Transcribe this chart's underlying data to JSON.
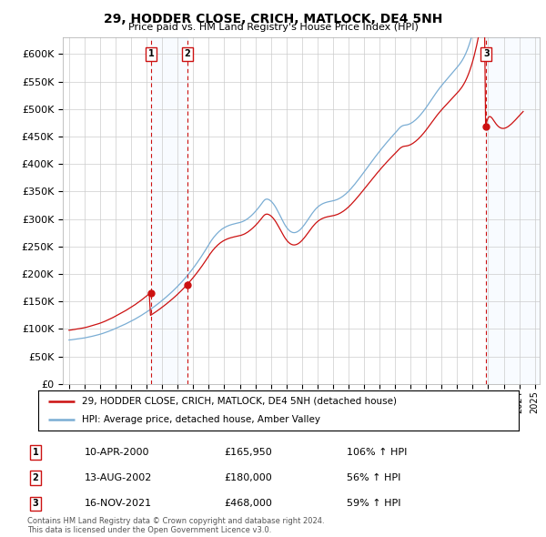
{
  "title": "29, HODDER CLOSE, CRICH, MATLOCK, DE4 5NH",
  "subtitle": "Price paid vs. HM Land Registry's House Price Index (HPI)",
  "footer": "Contains HM Land Registry data © Crown copyright and database right 2024.\nThis data is licensed under the Open Government Licence v3.0.",
  "legend_line1": "29, HODDER CLOSE, CRICH, MATLOCK, DE4 5NH (detached house)",
  "legend_line2": "HPI: Average price, detached house, Amber Valley",
  "sales": [
    {
      "num": 1,
      "date_str": "10-APR-2000",
      "year": 2000.28,
      "price": 165950,
      "pct": "106%",
      "dir": "↑"
    },
    {
      "num": 2,
      "date_str": "13-AUG-2002",
      "year": 2002.62,
      "price": 180000,
      "pct": "56%",
      "dir": "↑"
    },
    {
      "num": 3,
      "date_str": "16-NOV-2021",
      "year": 2021.87,
      "price": 468000,
      "pct": "59%",
      "dir": "↑"
    }
  ],
  "hpi_color": "#7aadd4",
  "price_color": "#cc1111",
  "highlight_color": "#ddeeff",
  "ylim": [
    0,
    620000
  ],
  "yticks": [
    0,
    50000,
    100000,
    150000,
    200000,
    250000,
    300000,
    350000,
    400000,
    450000,
    500000,
    550000,
    600000
  ],
  "ytick_labels": [
    "£0",
    "£50K",
    "£100K",
    "£150K",
    "£200K",
    "£250K",
    "£300K",
    "£350K",
    "£400K",
    "£450K",
    "£500K",
    "£550K",
    "£600K"
  ],
  "hpi_index": [
    100.0,
    100.2,
    100.5,
    101.0,
    101.3,
    101.8,
    102.2,
    102.5,
    102.9,
    103.3,
    103.8,
    104.2,
    104.7,
    105.3,
    105.8,
    106.5,
    107.1,
    107.8,
    108.5,
    109.2,
    109.9,
    110.7,
    111.5,
    112.2,
    113.0,
    113.9,
    114.8,
    115.8,
    116.8,
    117.9,
    119.0,
    120.1,
    121.3,
    122.4,
    123.6,
    124.9,
    126.1,
    127.3,
    128.6,
    129.9,
    131.2,
    132.6,
    134.0,
    135.4,
    136.8,
    138.3,
    139.7,
    141.2,
    142.7,
    144.2,
    145.8,
    147.4,
    149.1,
    150.8,
    152.5,
    154.3,
    156.1,
    158.0,
    159.8,
    161.7,
    163.7,
    165.6,
    167.6,
    169.7,
    171.8,
    173.9,
    176.1,
    178.3,
    180.5,
    182.8,
    185.1,
    187.5,
    189.9,
    192.3,
    194.8,
    197.3,
    199.9,
    202.5,
    205.2,
    207.9,
    210.6,
    213.4,
    216.3,
    219.2,
    222.2,
    225.2,
    228.3,
    231.5,
    234.7,
    238.0,
    241.4,
    244.9,
    248.4,
    252.0,
    255.7,
    259.5,
    263.4,
    267.3,
    271.3,
    275.5,
    279.7,
    284.0,
    288.4,
    292.9,
    297.5,
    302.2,
    307.0,
    311.9,
    316.9,
    321.6,
    326.0,
    330.1,
    333.9,
    337.5,
    340.8,
    343.9,
    346.7,
    349.3,
    351.6,
    353.6,
    355.4,
    357.0,
    358.4,
    359.7,
    360.8,
    361.8,
    362.7,
    363.5,
    364.3,
    365.0,
    365.7,
    366.3,
    367.0,
    367.9,
    369.0,
    370.3,
    371.8,
    373.6,
    375.6,
    377.8,
    380.3,
    382.9,
    385.8,
    388.8,
    392.0,
    395.4,
    398.9,
    402.6,
    406.4,
    410.4,
    414.5,
    417.9,
    419.8,
    420.4,
    419.7,
    418.2,
    416.0,
    413.0,
    409.4,
    405.2,
    400.4,
    395.1,
    389.4,
    383.5,
    377.5,
    371.7,
    366.2,
    361.1,
    356.6,
    352.8,
    349.6,
    347.1,
    345.4,
    344.3,
    344.0,
    344.4,
    345.4,
    347.0,
    349.1,
    351.8,
    354.9,
    358.5,
    362.3,
    366.4,
    370.7,
    375.1,
    379.6,
    383.9,
    388.0,
    391.9,
    395.5,
    398.8,
    401.7,
    404.2,
    406.4,
    408.2,
    409.8,
    411.1,
    412.2,
    413.1,
    413.9,
    414.6,
    415.2,
    415.8,
    416.4,
    417.1,
    418.0,
    419.1,
    420.3,
    421.8,
    423.5,
    425.4,
    427.5,
    429.8,
    432.3,
    435.0,
    437.9,
    441.0,
    444.2,
    447.6,
    451.1,
    454.7,
    458.4,
    462.1,
    465.9,
    469.8,
    473.7,
    477.7,
    481.7,
    485.7,
    489.7,
    493.7,
    497.7,
    501.7,
    505.7,
    509.7,
    513.6,
    517.5,
    521.3,
    525.1,
    528.9,
    532.6,
    536.3,
    539.9,
    543.5,
    547.0,
    550.5,
    553.9,
    557.3,
    560.6,
    563.9,
    567.1,
    570.4,
    573.7,
    577.1,
    580.5,
    583.5,
    585.8,
    587.3,
    588.2,
    588.6,
    589.1,
    589.8,
    590.9,
    592.3,
    594.0,
    596.0,
    598.3,
    600.8,
    603.6,
    606.5,
    609.7,
    613.1,
    616.7,
    620.4,
    624.3,
    628.4,
    632.6,
    636.9,
    641.3,
    645.7,
    650.1,
    654.5,
    658.8,
    663.0,
    667.1,
    671.0,
    674.8,
    678.5,
    682.1,
    685.6,
    689.1,
    692.6,
    696.1,
    699.6,
    703.0,
    706.4,
    709.8,
    713.2,
    716.6,
    720.1,
    723.7,
    727.5,
    731.6,
    736.2,
    741.4,
    747.2,
    753.7,
    761.0,
    769.1,
    778.0,
    787.8,
    798.6,
    810.3,
    823.1,
    836.9,
    851.7,
    867.5,
    884.3,
    902.1,
    920.8,
    940.3,
    960.5,
    981.4,
    994.3,
    998.4,
    997.1,
    992.1,
    985.2,
    977.9,
    971.2,
    965.4,
    960.7,
    957.2,
    955.0,
    954.0,
    954.0,
    955.1,
    957.0,
    959.7,
    963.0,
    966.8,
    971.0,
    975.7,
    980.6,
    985.6,
    990.7,
    996.0,
    1001.3,
    1006.6,
    1011.9,
    1017.1
  ]
}
